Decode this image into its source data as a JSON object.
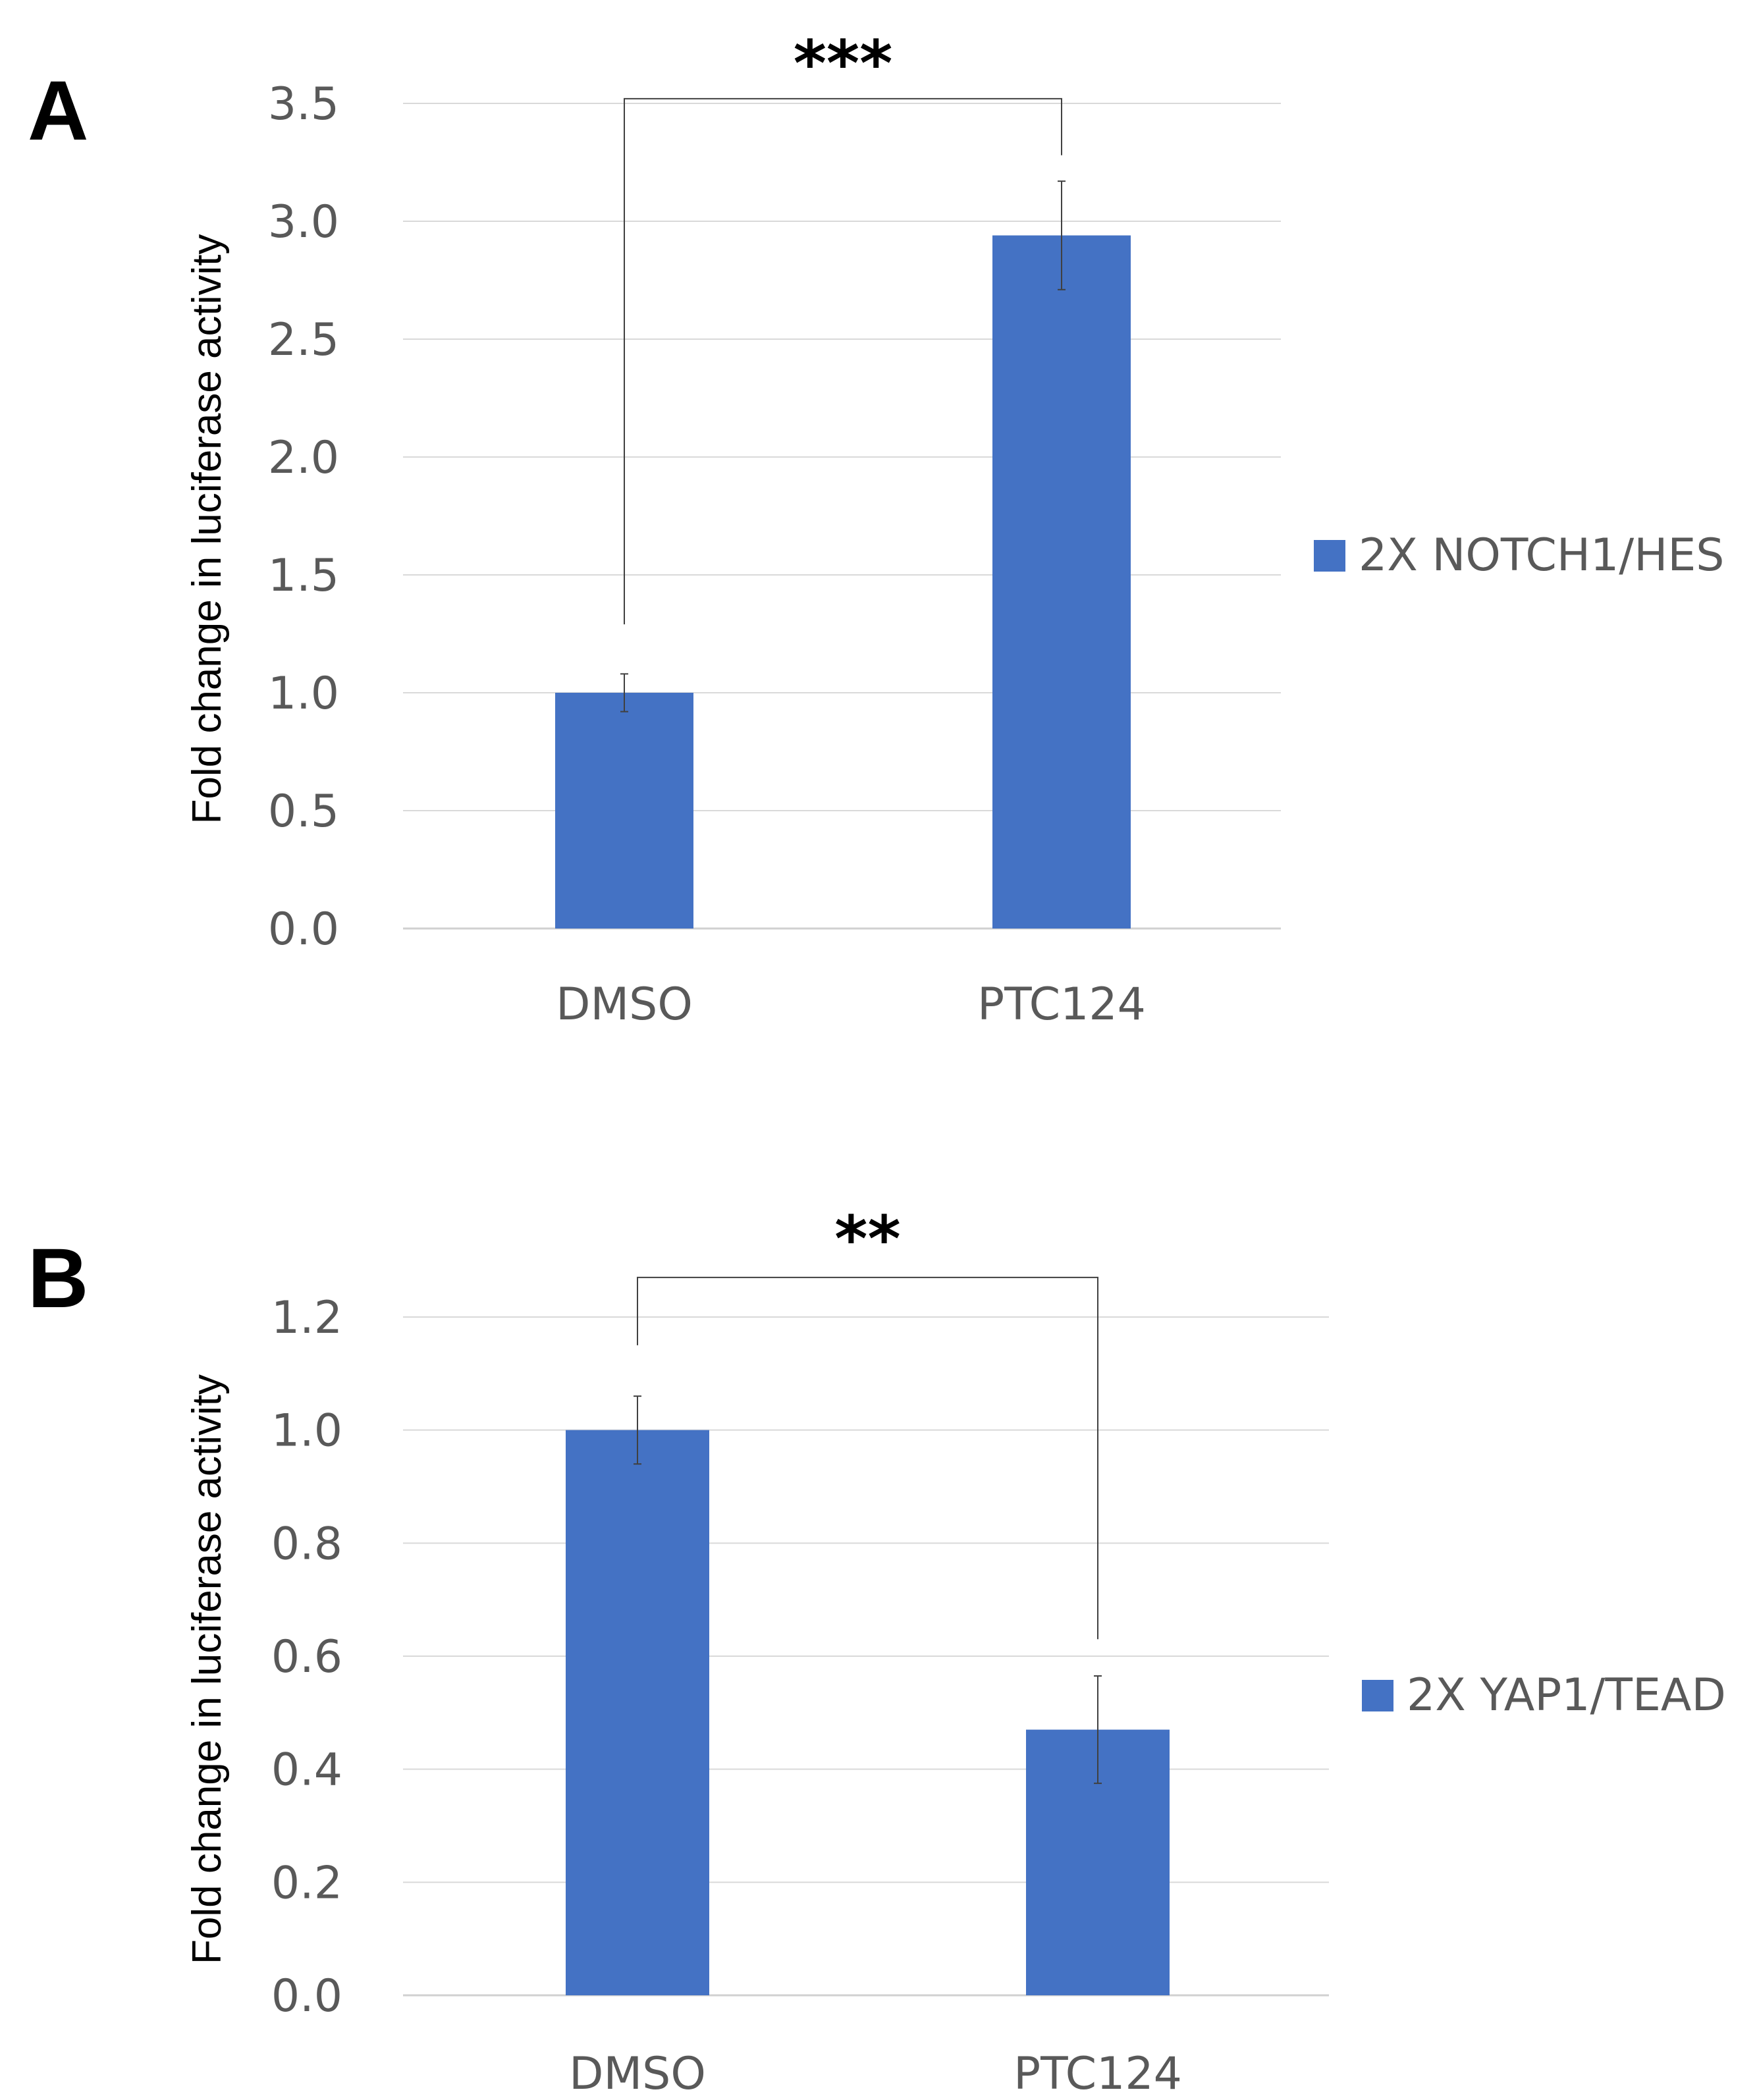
{
  "colors": {
    "bar": "#4472C4",
    "grid": "#d9d9d9",
    "axis": "#d0d0d0",
    "bracket": "#404040",
    "errorbar": "#404040"
  },
  "chart_data": [
    {
      "type": "bar",
      "panel": "A",
      "title": "",
      "ylabel": "Fold change in luciferase activity",
      "xlabel": "",
      "categories": [
        "DMSO",
        "PTC124"
      ],
      "series": [
        {
          "name": "2X NOTCH1/HES",
          "values": [
            1.0,
            2.94
          ],
          "errors": [
            0.08,
            0.23
          ]
        }
      ],
      "ylim": [
        0,
        3.5
      ],
      "yticks": [
        0.0,
        0.5,
        1.0,
        1.5,
        2.0,
        2.5,
        3.0,
        3.5
      ],
      "ytick_labels": [
        "0.0",
        "0.5",
        "1.0",
        "1.5",
        "2.0",
        "2.5",
        "3.0",
        "3.5"
      ],
      "grid": true,
      "legend_position": "right",
      "significance": {
        "label": "***",
        "bracket_top": 3.52,
        "left_end": 1.29,
        "right_end": 3.28
      }
    },
    {
      "type": "bar",
      "panel": "B",
      "title": "",
      "ylabel": "Fold change in luciferase activity",
      "xlabel": "",
      "categories": [
        "DMSO",
        "PTC124"
      ],
      "series": [
        {
          "name": "2X YAP1/TEAD",
          "values": [
            1.0,
            0.47
          ],
          "errors": [
            0.06,
            0.095
          ]
        }
      ],
      "ylim": [
        0,
        1.2
      ],
      "yticks": [
        0.0,
        0.2,
        0.4,
        0.6,
        0.8,
        1.0,
        1.2
      ],
      "ytick_labels": [
        "0.0",
        "0.2",
        "0.4",
        "0.6",
        "0.8",
        "1.0",
        "1.2"
      ],
      "grid": true,
      "legend_position": "right",
      "significance": {
        "label": "**",
        "bracket_top": 1.27,
        "left_end": 1.15,
        "right_end": 0.63
      }
    }
  ]
}
